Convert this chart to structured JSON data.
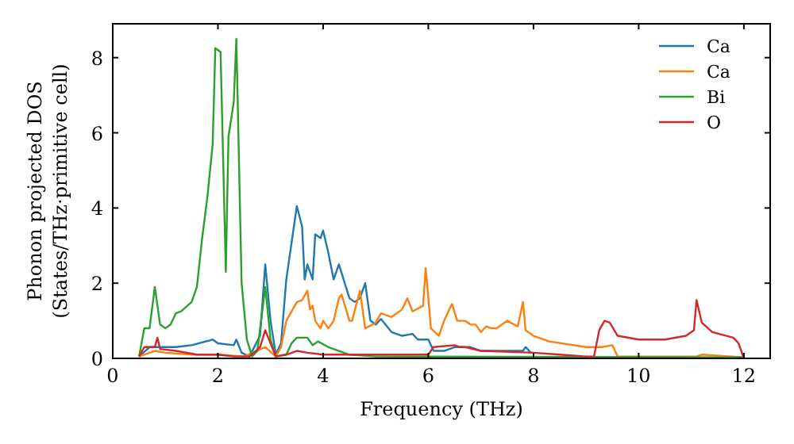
{
  "chart_data": {
    "type": "line",
    "xlabel": "Frequency (THz)",
    "ylabel": "Phonon projected DOS\n(States/THz·primitive cell)",
    "xlim": [
      0,
      12.5
    ],
    "ylim": [
      0,
      8.9
    ],
    "xticks": [
      0,
      2,
      4,
      6,
      8,
      10,
      12
    ],
    "yticks": [
      0,
      2,
      4,
      6,
      8
    ],
    "grid": false,
    "legend": "top right",
    "series": [
      {
        "name": "Ca",
        "color": "#1f77b4",
        "x": [
          0.5,
          0.7,
          0.9,
          1.2,
          1.5,
          1.9,
          2.0,
          2.3,
          2.35,
          2.45,
          2.6,
          2.8,
          2.9,
          3.0,
          3.1,
          3.2,
          3.3,
          3.5,
          3.6,
          3.65,
          3.7,
          3.8,
          3.85,
          3.95,
          4.0,
          4.1,
          4.2,
          4.3,
          4.5,
          4.6,
          4.7,
          4.8,
          4.9,
          5.0,
          5.1,
          5.3,
          5.5,
          5.7,
          5.8,
          6.0,
          6.1,
          6.3,
          6.5,
          6.8,
          7.0,
          7.8,
          7.85,
          7.95
        ],
        "values": [
          0.05,
          0.3,
          0.3,
          0.3,
          0.35,
          0.5,
          0.4,
          0.35,
          0.5,
          0.15,
          0.05,
          0.6,
          2.5,
          1.0,
          0.1,
          0.4,
          2.1,
          4.05,
          3.5,
          2.1,
          2.5,
          2.1,
          3.3,
          3.2,
          3.4,
          2.8,
          2.1,
          2.5,
          1.6,
          1.5,
          1.6,
          2.0,
          1.0,
          0.9,
          1.05,
          0.7,
          0.6,
          0.65,
          0.5,
          0.5,
          0.2,
          0.2,
          0.3,
          0.3,
          0.2,
          0.2,
          0.3,
          0.15
        ]
      },
      {
        "name": "Ca",
        "color": "#ff7f0e",
        "x": [
          0.5,
          0.8,
          1.0,
          1.5,
          2.0,
          2.5,
          2.9,
          3.1,
          3.2,
          3.3,
          3.5,
          3.6,
          3.7,
          3.75,
          3.8,
          3.85,
          3.95,
          4.0,
          4.1,
          4.2,
          4.3,
          4.35,
          4.5,
          4.55,
          4.7,
          4.8,
          5.0,
          5.1,
          5.3,
          5.5,
          5.6,
          5.7,
          5.9,
          5.95,
          6.05,
          6.2,
          6.3,
          6.45,
          6.55,
          6.7,
          6.8,
          6.9,
          7.0,
          7.1,
          7.2,
          7.3,
          7.5,
          7.7,
          7.8,
          7.85,
          8.0,
          8.3,
          9.0,
          9.3,
          9.5,
          9.6,
          11.1,
          11.2,
          12.0
        ],
        "values": [
          0.05,
          0.2,
          0.15,
          0.1,
          0.1,
          0.05,
          0.3,
          0.05,
          0.3,
          1.0,
          1.5,
          1.55,
          1.8,
          1.3,
          1.4,
          1.0,
          0.8,
          1.0,
          0.8,
          1.0,
          1.6,
          1.7,
          1.0,
          1.0,
          1.8,
          0.8,
          0.95,
          1.2,
          1.1,
          1.3,
          1.6,
          1.25,
          1.4,
          2.4,
          0.8,
          0.6,
          1.0,
          1.45,
          1.0,
          1.0,
          0.9,
          0.9,
          0.7,
          0.85,
          0.8,
          0.8,
          1.0,
          0.85,
          1.5,
          0.75,
          0.6,
          0.45,
          0.3,
          0.3,
          0.35,
          0.05,
          0.05,
          0.1,
          0.03
        ]
      },
      {
        "name": "Bi",
        "color": "#2ca02c",
        "x": [
          0.5,
          0.6,
          0.7,
          0.8,
          0.9,
          1.0,
          1.1,
          1.2,
          1.3,
          1.5,
          1.6,
          1.7,
          1.8,
          1.9,
          1.95,
          2.05,
          2.15,
          2.2,
          2.3,
          2.35,
          2.45,
          2.55,
          2.65,
          2.75,
          2.9,
          3.0,
          3.1,
          3.3,
          3.4,
          3.5,
          3.7,
          3.8,
          3.9,
          4.1,
          4.3,
          4.5,
          5.0,
          12.0
        ],
        "values": [
          0.05,
          0.8,
          0.8,
          1.9,
          0.9,
          0.8,
          0.9,
          1.2,
          1.25,
          1.5,
          1.9,
          3.2,
          4.3,
          5.7,
          8.25,
          8.15,
          2.3,
          5.9,
          6.8,
          8.5,
          2.0,
          0.5,
          0.05,
          0.2,
          1.9,
          0.5,
          0.05,
          0.1,
          0.4,
          0.55,
          0.55,
          0.35,
          0.45,
          0.3,
          0.2,
          0.1,
          0.05,
          0.03
        ]
      },
      {
        "name": "O",
        "color": "#d62728",
        "x": [
          0.5,
          0.6,
          0.8,
          0.85,
          0.9,
          1.2,
          1.6,
          2.0,
          2.3,
          2.6,
          2.8,
          2.9,
          3.1,
          3.3,
          3.5,
          3.7,
          4.0,
          4.5,
          5.0,
          6.0,
          6.1,
          6.5,
          6.6,
          6.7,
          7.0,
          8.0,
          8.5,
          9.0,
          9.15,
          9.25,
          9.35,
          9.45,
          9.6,
          10.0,
          10.5,
          10.9,
          11.05,
          11.1,
          11.2,
          11.4,
          11.8,
          11.9,
          12.0
        ],
        "values": [
          0.05,
          0.3,
          0.3,
          0.55,
          0.25,
          0.2,
          0.1,
          0.1,
          0.05,
          0.05,
          0.3,
          0.75,
          0.05,
          0.1,
          0.2,
          0.15,
          0.1,
          0.1,
          0.1,
          0.1,
          0.3,
          0.35,
          0.3,
          0.3,
          0.2,
          0.15,
          0.1,
          0.05,
          0.05,
          0.75,
          1.0,
          0.95,
          0.6,
          0.5,
          0.5,
          0.6,
          0.75,
          1.55,
          0.95,
          0.7,
          0.55,
          0.4,
          0.0
        ]
      }
    ]
  }
}
